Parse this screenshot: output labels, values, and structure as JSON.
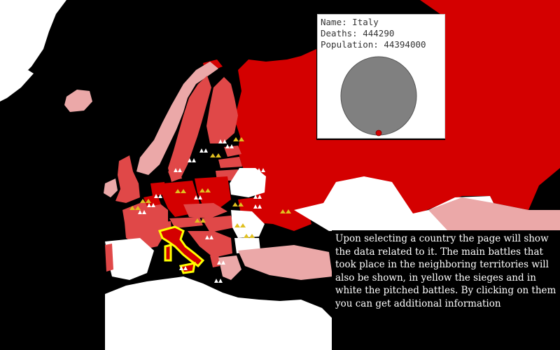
{
  "tooltip": {
    "name_label": "Name:",
    "name_value": "Italy",
    "deaths_label": "Deaths:",
    "deaths_value": "444290",
    "population_label": "Population:",
    "population_value": "44394000",
    "deaths_share": 0.01
  },
  "info_text": "Upon selecting a country the page will show the data related to it. The main battles that took place in the neighboring territories will also be shown, in yellow the sieges and in white the pitched battles. By clicking on them you can get additional information",
  "colors": {
    "background": "#000000",
    "dark_red": "#d40000",
    "medium_red": "#e04848",
    "light_pink": "#eba8a8",
    "neutral": "#ffffff",
    "selected_outline": "#ffff00",
    "siege_icon": "#e0c020",
    "pitched_battle_icon": "#ffffff",
    "pie_total": "#808080",
    "pie_deaths": "#d40000"
  },
  "legend_icons": {
    "siege": "siege-marker-icon",
    "pitched_battle": "battle-marker-icon"
  }
}
